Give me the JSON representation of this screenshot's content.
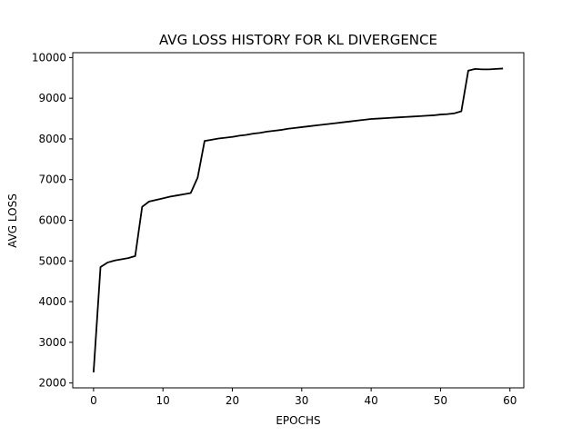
{
  "chart_data": {
    "type": "line",
    "title": "AVG LOSS HISTORY FOR KL DIVERGENCE",
    "xlabel": "EPOCHS",
    "ylabel": "AVG LOSS",
    "xlim": [
      -3,
      62
    ],
    "ylim": [
      1880,
      10120
    ],
    "xticks": [
      0,
      10,
      20,
      30,
      40,
      50,
      60
    ],
    "yticks": [
      2000,
      3000,
      4000,
      5000,
      6000,
      7000,
      8000,
      9000,
      10000
    ],
    "grid": false,
    "line_color": "#000000",
    "series": [
      {
        "x": [
          0,
          1,
          2,
          3,
          4,
          5,
          6,
          7,
          8,
          9,
          10,
          11,
          12,
          13,
          14,
          15,
          16,
          17,
          18,
          19,
          20,
          21,
          22,
          23,
          24,
          25,
          26,
          27,
          28,
          29,
          30,
          31,
          32,
          33,
          34,
          35,
          36,
          37,
          38,
          39,
          40,
          41,
          42,
          43,
          44,
          45,
          46,
          47,
          48,
          49,
          50,
          51,
          52,
          53,
          54,
          55,
          56,
          57,
          58,
          59
        ],
        "values": [
          2260,
          4850,
          4960,
          5010,
          5040,
          5070,
          5120,
          6330,
          6460,
          6500,
          6540,
          6580,
          6610,
          6640,
          6670,
          7050,
          7950,
          7980,
          8010,
          8030,
          8050,
          8080,
          8100,
          8130,
          8150,
          8180,
          8200,
          8220,
          8250,
          8270,
          8290,
          8310,
          8330,
          8350,
          8370,
          8390,
          8410,
          8430,
          8450,
          8470,
          8490,
          8500,
          8510,
          8520,
          8530,
          8540,
          8550,
          8560,
          8570,
          8580,
          8600,
          8610,
          8630,
          8680,
          9680,
          9720,
          9710,
          9710,
          9720,
          9730
        ]
      }
    ]
  }
}
